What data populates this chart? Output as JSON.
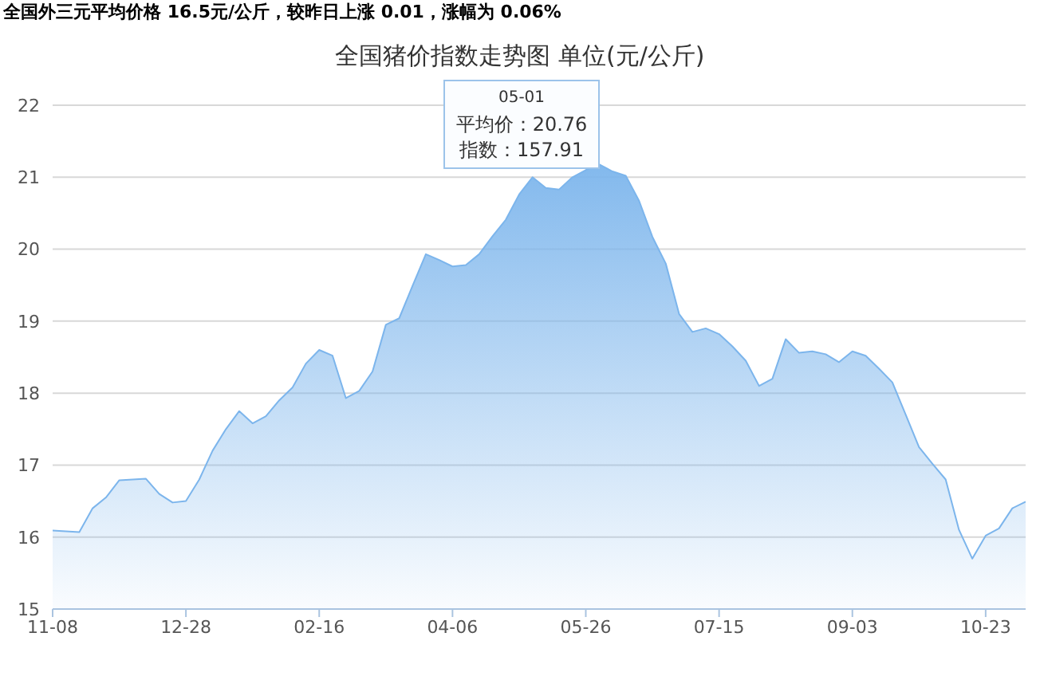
{
  "chart_data": {
    "type": "area",
    "title": "全国猪价指数走势图 单位(元/公斤)",
    "annotations": [
      "全国外三元平均价格 16.5元/公斤，较昨日上涨 0.01，涨幅为 0.06%",
      "05-01\n平均价：20.76\n指数：157.91"
    ],
    "categories": [
      "11-08",
      null,
      null,
      null,
      null,
      null,
      null,
      null,
      null,
      null,
      "12-28",
      null,
      null,
      null,
      null,
      null,
      null,
      null,
      null,
      null,
      "02-16",
      null,
      null,
      null,
      null,
      null,
      null,
      null,
      null,
      null,
      "04-06",
      null,
      null,
      null,
      null,
      null,
      null,
      null,
      null,
      null,
      "05-26",
      null,
      null,
      null,
      null,
      null,
      null,
      null,
      null,
      null,
      "07-15",
      null,
      null,
      null,
      null,
      null,
      null,
      null,
      null,
      null,
      "09-03",
      null,
      null,
      null,
      null,
      null,
      null,
      null,
      null,
      null,
      "10-23",
      null,
      null,
      null
    ],
    "series": [
      {
        "color": "#7cb5ec",
        "values": [
          16.09,
          16.08,
          16.07,
          16.4,
          16.55,
          16.79,
          16.8,
          16.81,
          16.6,
          16.48,
          16.5,
          16.8,
          17.2,
          17.5,
          17.75,
          17.58,
          17.68,
          17.9,
          18.08,
          18.41,
          18.6,
          18.52,
          17.93,
          18.03,
          18.3,
          18.95,
          19.04,
          19.49,
          19.93,
          19.85,
          19.76,
          19.78,
          19.93,
          20.18,
          20.41,
          20.76,
          21.0,
          20.85,
          20.83,
          21.0,
          21.1,
          21.18,
          21.08,
          21.02,
          20.67,
          20.17,
          19.8,
          19.1,
          18.85,
          18.9,
          18.82,
          18.65,
          18.45,
          18.1,
          18.2,
          18.75,
          18.56,
          18.58,
          18.54,
          18.43,
          18.58,
          18.52,
          18.34,
          18.15,
          17.7,
          17.25,
          17.02,
          16.8,
          16.1,
          15.7,
          16.02,
          16.12,
          16.4,
          16.49
        ]
      }
    ],
    "ylim": [
      15,
      22
    ],
    "yticks": [
      15,
      16,
      17,
      18,
      19,
      20,
      21,
      22
    ],
    "grid": "y"
  }
}
